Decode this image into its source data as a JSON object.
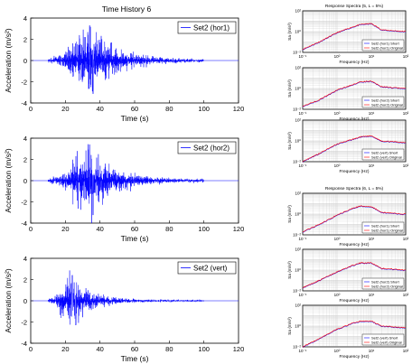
{
  "chart_data": {
    "time_history": {
      "type": "line",
      "title": "Time History 6",
      "xlabel": "Time (s)",
      "ylabel": "Acceleration (m/s²)",
      "xlim": [
        0,
        120
      ],
      "ylim": [
        -4,
        4
      ],
      "xticks": [
        0,
        20,
        40,
        60,
        80,
        100,
        120
      ],
      "yticks": [
        -4,
        -2,
        0,
        2,
        4
      ],
      "line_color": "#0000ff",
      "signal_window_s": [
        10,
        100
      ],
      "panels": [
        {
          "legend": "Set2 (hor1)",
          "peak": 3.3,
          "peak_time": 34,
          "envelope_rise_s": 26,
          "envelope_decay_s": 55
        },
        {
          "legend": "Set2 (hor2)",
          "peak": 3.4,
          "peak_time": 34,
          "envelope_rise_s": 27,
          "envelope_decay_s": 50
        },
        {
          "legend": "Set2 (vert)",
          "peak": 2.4,
          "peak_time": 24,
          "envelope_rise_s": 17,
          "envelope_decay_s": 40
        }
      ]
    },
    "response_spectra": {
      "type": "line",
      "xscale": "log",
      "yscale": "log",
      "xlim": [
        0.1,
        100
      ],
      "ylim": [
        0.01,
        100
      ],
      "xticks": [
        "10⁻¹",
        "10⁰",
        "10¹",
        "10²"
      ],
      "yticks": [
        "10⁻²",
        "10⁰",
        "10²"
      ],
      "xlabel": "Frequency (Hz)",
      "ylabel": "Sa (m/s²)",
      "short_color": "#0000ff",
      "original_color": "#ff0000",
      "groups": [
        {
          "title": "Response Spectra (5, L = 5%)",
          "panels": [
            {
              "legend": [
                "Set2 (hor1) Short",
                "Set2 (hor1) Original"
              ],
              "curve": [
                [
                  0.1,
                  0.02
                ],
                [
                  0.3,
                  0.1
                ],
                [
                  1,
                  0.8
                ],
                [
                  3,
                  3
                ],
                [
                  5,
                  5
                ],
                [
                  10,
                  6
                ],
                [
                  20,
                  1.5
                ],
                [
                  100,
                  1
                ]
              ]
            },
            {
              "legend": [
                "Set2 (hor2) Short",
                "Set2 (hor2) Original"
              ],
              "curve": [
                [
                  0.1,
                  0.02
                ],
                [
                  0.3,
                  0.08
                ],
                [
                  1,
                  0.7
                ],
                [
                  3,
                  2.5
                ],
                [
                  5,
                  4.5
                ],
                [
                  10,
                  5
                ],
                [
                  20,
                  1.5
                ],
                [
                  100,
                  1
                ]
              ]
            },
            {
              "legend": [
                "Set2 (vert) Short",
                "Set2 (vert) Original"
              ],
              "curve": [
                [
                  0.1,
                  0.01
                ],
                [
                  0.3,
                  0.06
                ],
                [
                  1,
                  0.5
                ],
                [
                  3,
                  1.5
                ],
                [
                  5,
                  2.5
                ],
                [
                  10,
                  3
                ],
                [
                  20,
                  1
                ],
                [
                  100,
                  0.7
                ]
              ]
            }
          ]
        },
        {
          "title": "Response Spectra (6, L = 5%)",
          "panels": [
            {
              "legend": [
                "Set2 (hor1) Short",
                "Set2 (hor1) Original"
              ],
              "curve": [
                [
                  0.1,
                  0.02
                ],
                [
                  0.3,
                  0.1
                ],
                [
                  1,
                  0.8
                ],
                [
                  3,
                  4
                ],
                [
                  5,
                  6
                ],
                [
                  10,
                  5
                ],
                [
                  20,
                  1.5
                ],
                [
                  100,
                  1
                ]
              ]
            },
            {
              "legend": [
                "Set2 (hor2) Short",
                "Set2 (hor2) Original"
              ],
              "curve": [
                [
                  0.1,
                  0.02
                ],
                [
                  0.3,
                  0.1
                ],
                [
                  1,
                  0.7
                ],
                [
                  3,
                  3
                ],
                [
                  5,
                  5
                ],
                [
                  10,
                  5
                ],
                [
                  20,
                  1.5
                ],
                [
                  100,
                  1
                ]
              ]
            },
            {
              "legend": [
                "Set2 (vert) Short",
                "Set2 (vert) Original"
              ],
              "curve": [
                [
                  0.1,
                  0.01
                ],
                [
                  0.3,
                  0.06
                ],
                [
                  1,
                  0.5
                ],
                [
                  3,
                  2
                ],
                [
                  5,
                  3
                ],
                [
                  10,
                  3
                ],
                [
                  20,
                  1
                ],
                [
                  100,
                  0.7
                ]
              ]
            }
          ]
        }
      ]
    }
  }
}
